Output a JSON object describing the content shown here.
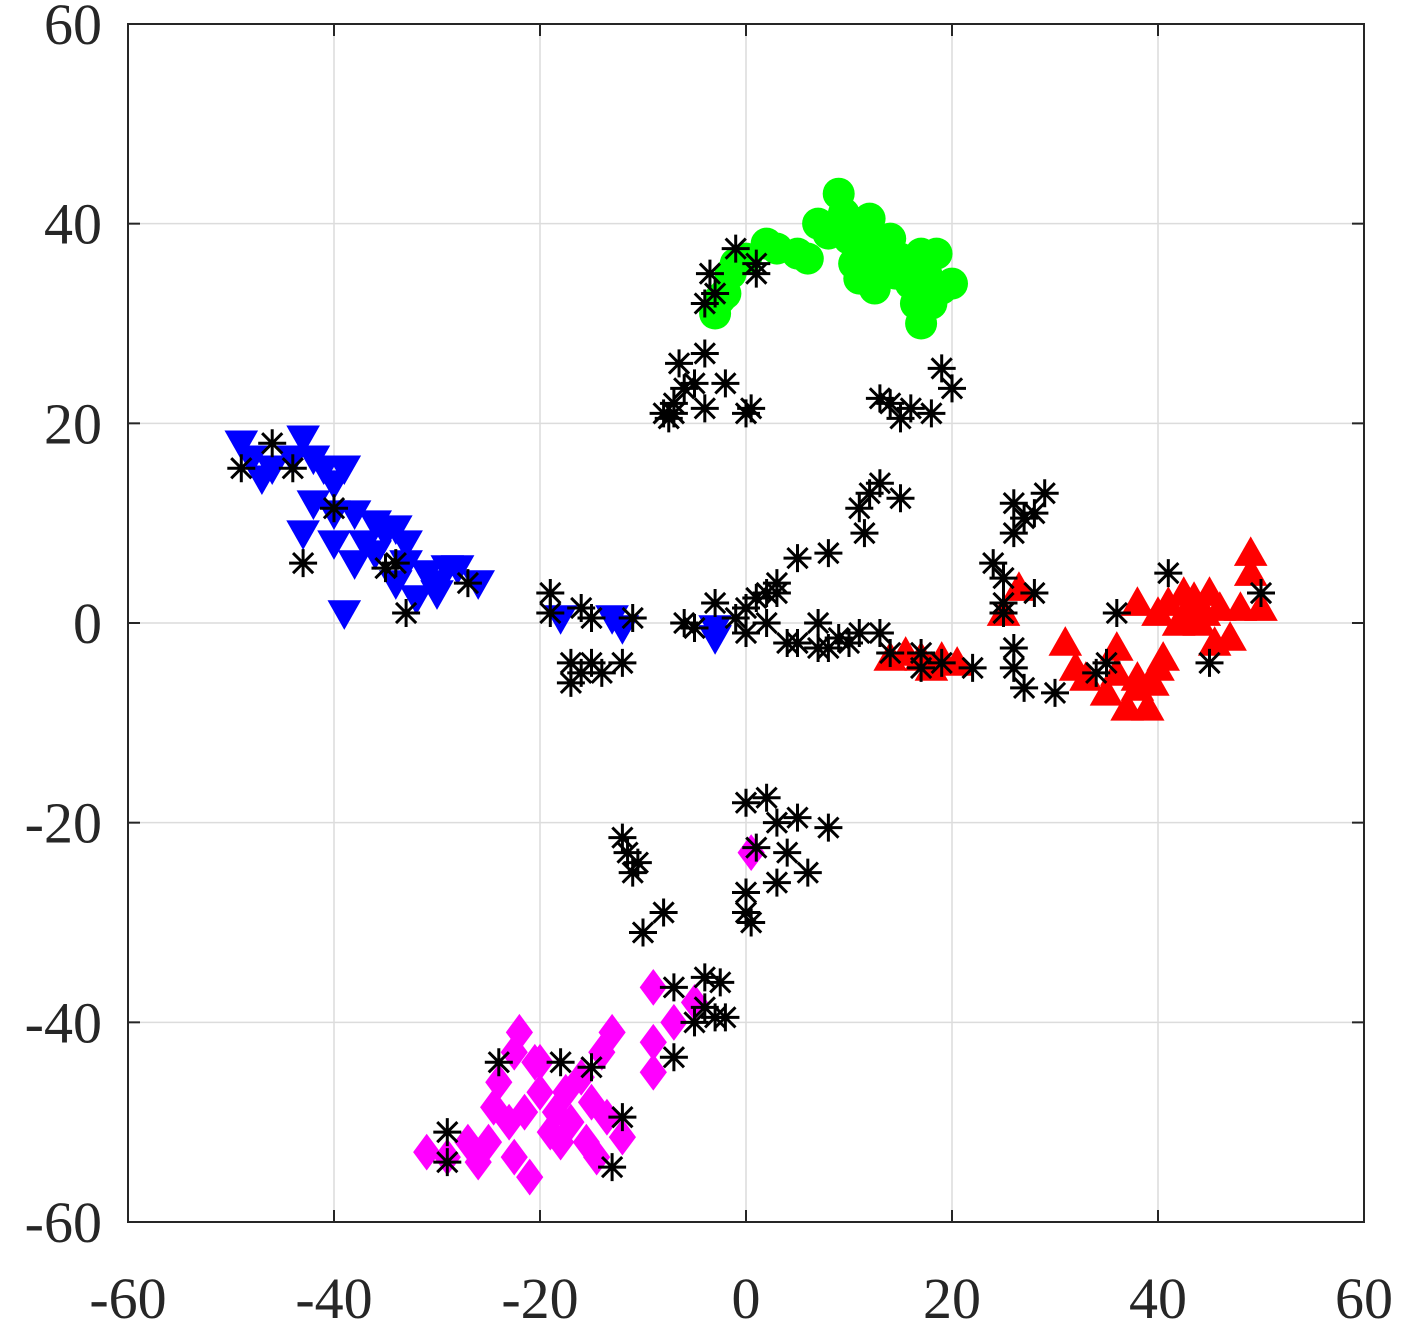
{
  "chart_data": {
    "type": "scatter",
    "xlim": [
      -60,
      60
    ],
    "ylim": [
      -60,
      60
    ],
    "x_ticks": [
      -60,
      -40,
      -20,
      0,
      20,
      40,
      60
    ],
    "y_ticks": [
      -60,
      -40,
      -20,
      0,
      20,
      40,
      60
    ],
    "x_tick_labels": [
      "-60",
      "-40",
      "-20",
      "0",
      "20",
      "40",
      "60"
    ],
    "y_tick_labels": [
      "-60",
      "-40",
      "-20",
      "0",
      "20",
      "40",
      "60"
    ],
    "grid": true,
    "box": true,
    "series": [
      {
        "marker": "circle",
        "color": "#00ff00",
        "points": [
          [
            -3,
            31
          ],
          [
            -2.5,
            32.5
          ],
          [
            -2,
            33
          ],
          [
            -1.5,
            35
          ],
          [
            -1,
            36
          ],
          [
            0,
            36.5
          ],
          [
            2,
            38
          ],
          [
            3,
            37.5
          ],
          [
            5,
            37
          ],
          [
            6,
            36.5
          ],
          [
            7,
            40
          ],
          [
            8,
            39
          ],
          [
            9,
            43
          ],
          [
            9.5,
            41
          ],
          [
            10,
            38.5
          ],
          [
            10.5,
            36
          ],
          [
            11,
            34.5
          ],
          [
            11.5,
            38
          ],
          [
            12,
            40.5
          ],
          [
            12.5,
            33.5
          ],
          [
            13,
            37
          ],
          [
            14,
            38.5
          ],
          [
            14.5,
            35
          ],
          [
            15,
            36.5
          ],
          [
            16,
            34
          ],
          [
            17,
            37
          ],
          [
            17.5,
            35
          ],
          [
            17,
            30
          ],
          [
            18,
            32
          ],
          [
            19,
            33.5
          ],
          [
            20,
            34
          ],
          [
            18.5,
            37
          ],
          [
            16.5,
            32
          ],
          [
            13,
            36
          ],
          [
            10,
            40
          ]
        ]
      },
      {
        "marker": "triangle-down",
        "color": "#0000ff",
        "points": [
          [
            -49,
            18
          ],
          [
            -48,
            16.5
          ],
          [
            -47,
            14.5
          ],
          [
            -46,
            15.5
          ],
          [
            -44,
            16.5
          ],
          [
            -43,
            18.5
          ],
          [
            -42,
            16.5
          ],
          [
            -41,
            15.5
          ],
          [
            -40,
            14
          ],
          [
            -39,
            15.5
          ],
          [
            -42,
            12
          ],
          [
            -40,
            11
          ],
          [
            -38,
            11
          ],
          [
            -36,
            10
          ],
          [
            -35,
            9
          ],
          [
            -34,
            9.5
          ],
          [
            -33,
            8
          ],
          [
            -40,
            8
          ],
          [
            -38,
            6
          ],
          [
            -36,
            7
          ],
          [
            -34,
            4
          ],
          [
            -33,
            6
          ],
          [
            -31,
            5
          ],
          [
            -30,
            4
          ],
          [
            -29,
            5.5
          ],
          [
            -28,
            5.5
          ],
          [
            -26,
            4
          ],
          [
            -30,
            3
          ],
          [
            -32,
            2.5
          ],
          [
            -39,
            1
          ],
          [
            -43,
            9
          ],
          [
            -37,
            8
          ],
          [
            -18,
            0.5
          ],
          [
            -13,
            0.5
          ],
          [
            -12,
            -0.5
          ],
          [
            -3,
            -0.5
          ],
          [
            -3,
            -1.5
          ]
        ]
      },
      {
        "marker": "triangle-up",
        "color": "#ff0000",
        "points": [
          [
            14,
            -3.5
          ],
          [
            15.5,
            -3
          ],
          [
            17,
            -3.5
          ],
          [
            18,
            -4.5
          ],
          [
            19,
            -3.5
          ],
          [
            20.5,
            -4
          ],
          [
            25,
            1
          ],
          [
            26.5,
            3.5
          ],
          [
            31,
            -2
          ],
          [
            32,
            -4.5
          ],
          [
            33,
            -5.5
          ],
          [
            35,
            -7
          ],
          [
            36,
            -2.5
          ],
          [
            37,
            -8.5
          ],
          [
            38,
            -6.5
          ],
          [
            39,
            -8.5
          ],
          [
            39.5,
            -6
          ],
          [
            40,
            -4.5
          ],
          [
            40.5,
            -3.5
          ],
          [
            38,
            2
          ],
          [
            40,
            1
          ],
          [
            41,
            2
          ],
          [
            42,
            0
          ],
          [
            42.5,
            3
          ],
          [
            43,
            1
          ],
          [
            43.5,
            2.5
          ],
          [
            44,
            0
          ],
          [
            44.5,
            1
          ],
          [
            45,
            3
          ],
          [
            45.5,
            -2
          ],
          [
            46,
            1.5
          ],
          [
            47,
            -1.5
          ],
          [
            48,
            1.5
          ],
          [
            49,
            7
          ],
          [
            49,
            5
          ],
          [
            50,
            1.5
          ],
          [
            36,
            -5
          ],
          [
            38,
            -5.5
          ]
        ]
      },
      {
        "marker": "diamond",
        "color": "#ff00ff",
        "points": [
          [
            -31,
            -53
          ],
          [
            -29,
            -53.5
          ],
          [
            -27,
            -52
          ],
          [
            -26,
            -54
          ],
          [
            -25,
            -52
          ],
          [
            -24.5,
            -48.5
          ],
          [
            -24,
            -46
          ],
          [
            -23,
            -50
          ],
          [
            -22.5,
            -53.5
          ],
          [
            -22,
            -41
          ],
          [
            -21.5,
            -49
          ],
          [
            -21,
            -55.5
          ],
          [
            -20.5,
            -44
          ],
          [
            -20,
            -47
          ],
          [
            -19,
            -51
          ],
          [
            -18.5,
            -49
          ],
          [
            -18,
            -52
          ],
          [
            -17.5,
            -47
          ],
          [
            -17,
            -50
          ],
          [
            -16,
            -45.5
          ],
          [
            -15.5,
            -52
          ],
          [
            -15,
            -48
          ],
          [
            -14.5,
            -53.5
          ],
          [
            -14,
            -43
          ],
          [
            -13.5,
            -49.5
          ],
          [
            -13,
            -41
          ],
          [
            -12,
            -51.5
          ],
          [
            -9,
            -36.5
          ],
          [
            -9,
            -42
          ],
          [
            -9,
            -45
          ],
          [
            -7,
            -40
          ],
          [
            -5,
            -38
          ],
          [
            0.5,
            -23
          ],
          [
            -20,
            -44
          ],
          [
            -22.5,
            -43
          ]
        ]
      },
      {
        "marker": "star",
        "color": "#000000",
        "points": [
          [
            -4,
            32
          ],
          [
            -3.5,
            35
          ],
          [
            -3,
            33
          ],
          [
            -1,
            37.5
          ],
          [
            1,
            36
          ],
          [
            1,
            35
          ],
          [
            -8,
            21
          ],
          [
            -7.5,
            20.5
          ],
          [
            -7,
            22
          ],
          [
            -6.5,
            26
          ],
          [
            -6,
            23.5
          ],
          [
            -5,
            24
          ],
          [
            -4,
            27
          ],
          [
            -4,
            21.5
          ],
          [
            -2,
            24
          ],
          [
            0,
            21
          ],
          [
            0.5,
            21.5
          ],
          [
            13,
            22.5
          ],
          [
            14,
            22
          ],
          [
            15,
            20.5
          ],
          [
            16,
            21.5
          ],
          [
            18,
            21
          ],
          [
            19,
            25.5
          ],
          [
            20,
            23.5
          ],
          [
            -7,
            21
          ],
          [
            -49,
            15.5
          ],
          [
            -46,
            18
          ],
          [
            -44,
            15.5
          ],
          [
            -43,
            6
          ],
          [
            -40,
            11.5
          ],
          [
            -35,
            5.5
          ],
          [
            -34,
            6
          ],
          [
            -33,
            1
          ],
          [
            -27,
            4
          ],
          [
            -19,
            3
          ],
          [
            -19,
            1
          ],
          [
            -16,
            1.5
          ],
          [
            -15,
            0.5
          ],
          [
            -11,
            0.5
          ],
          [
            -6,
            0
          ],
          [
            -5,
            -0.5
          ],
          [
            -3,
            2
          ],
          [
            -1,
            0.5
          ],
          [
            0,
            -1
          ],
          [
            0,
            1.5
          ],
          [
            1,
            2.5
          ],
          [
            2,
            0
          ],
          [
            2,
            3
          ],
          [
            3,
            4
          ],
          [
            3,
            3
          ],
          [
            4,
            -2
          ],
          [
            5,
            -2
          ],
          [
            5,
            6.5
          ],
          [
            7,
            -2.5
          ],
          [
            7,
            0
          ],
          [
            8,
            -2.5
          ],
          [
            8,
            7
          ],
          [
            9,
            -1.5
          ],
          [
            10,
            -2
          ],
          [
            11,
            -1
          ],
          [
            11,
            11.5
          ],
          [
            11.5,
            9
          ],
          [
            12,
            13
          ],
          [
            13,
            -1
          ],
          [
            13,
            14
          ],
          [
            15,
            12.5
          ],
          [
            14,
            -3
          ],
          [
            17,
            -4.5
          ],
          [
            17,
            -3
          ],
          [
            19,
            -4
          ],
          [
            -17,
            -4
          ],
          [
            -17,
            -6
          ],
          [
            -16,
            -5
          ],
          [
            -15,
            -4
          ],
          [
            -14,
            -5
          ],
          [
            -12,
            -4
          ],
          [
            22,
            -4.5
          ],
          [
            24,
            6
          ],
          [
            25,
            4.5
          ],
          [
            25,
            1
          ],
          [
            25,
            2
          ],
          [
            26,
            12
          ],
          [
            26,
            9
          ],
          [
            26,
            -2.5
          ],
          [
            26,
            -4.5
          ],
          [
            27,
            10.5
          ],
          [
            27,
            -6.5
          ],
          [
            28,
            11
          ],
          [
            28,
            3
          ],
          [
            29,
            13
          ],
          [
            30,
            -7
          ],
          [
            34,
            -5
          ],
          [
            35,
            -4
          ],
          [
            36,
            1
          ],
          [
            41,
            5
          ],
          [
            45,
            -4
          ],
          [
            50,
            3
          ],
          [
            -12,
            -21.5
          ],
          [
            -11.5,
            -23
          ],
          [
            -11,
            -25
          ],
          [
            -10.5,
            -24
          ],
          [
            -10,
            -31
          ],
          [
            -8,
            -29
          ],
          [
            -7,
            -36.5
          ],
          [
            -7,
            -43.5
          ],
          [
            -5,
            -40
          ],
          [
            -4,
            -38.5
          ],
          [
            -4,
            -35.5
          ],
          [
            -3,
            -39.5
          ],
          [
            -2.5,
            -36
          ],
          [
            -2,
            -39.5
          ],
          [
            0,
            -18
          ],
          [
            0,
            -27
          ],
          [
            0,
            -29
          ],
          [
            0.5,
            -30
          ],
          [
            1,
            -22.5
          ],
          [
            2,
            -17.5
          ],
          [
            3,
            -20
          ],
          [
            3,
            -26
          ],
          [
            4,
            -23
          ],
          [
            5,
            -19.5
          ],
          [
            6,
            -25
          ],
          [
            8,
            -20.5
          ],
          [
            -29,
            -51
          ],
          [
            -29,
            -54
          ],
          [
            -24,
            -44
          ],
          [
            -18,
            -44
          ],
          [
            -15,
            -44.5
          ],
          [
            -12,
            -49.5
          ],
          [
            -13,
            -54.5
          ]
        ]
      }
    ]
  }
}
